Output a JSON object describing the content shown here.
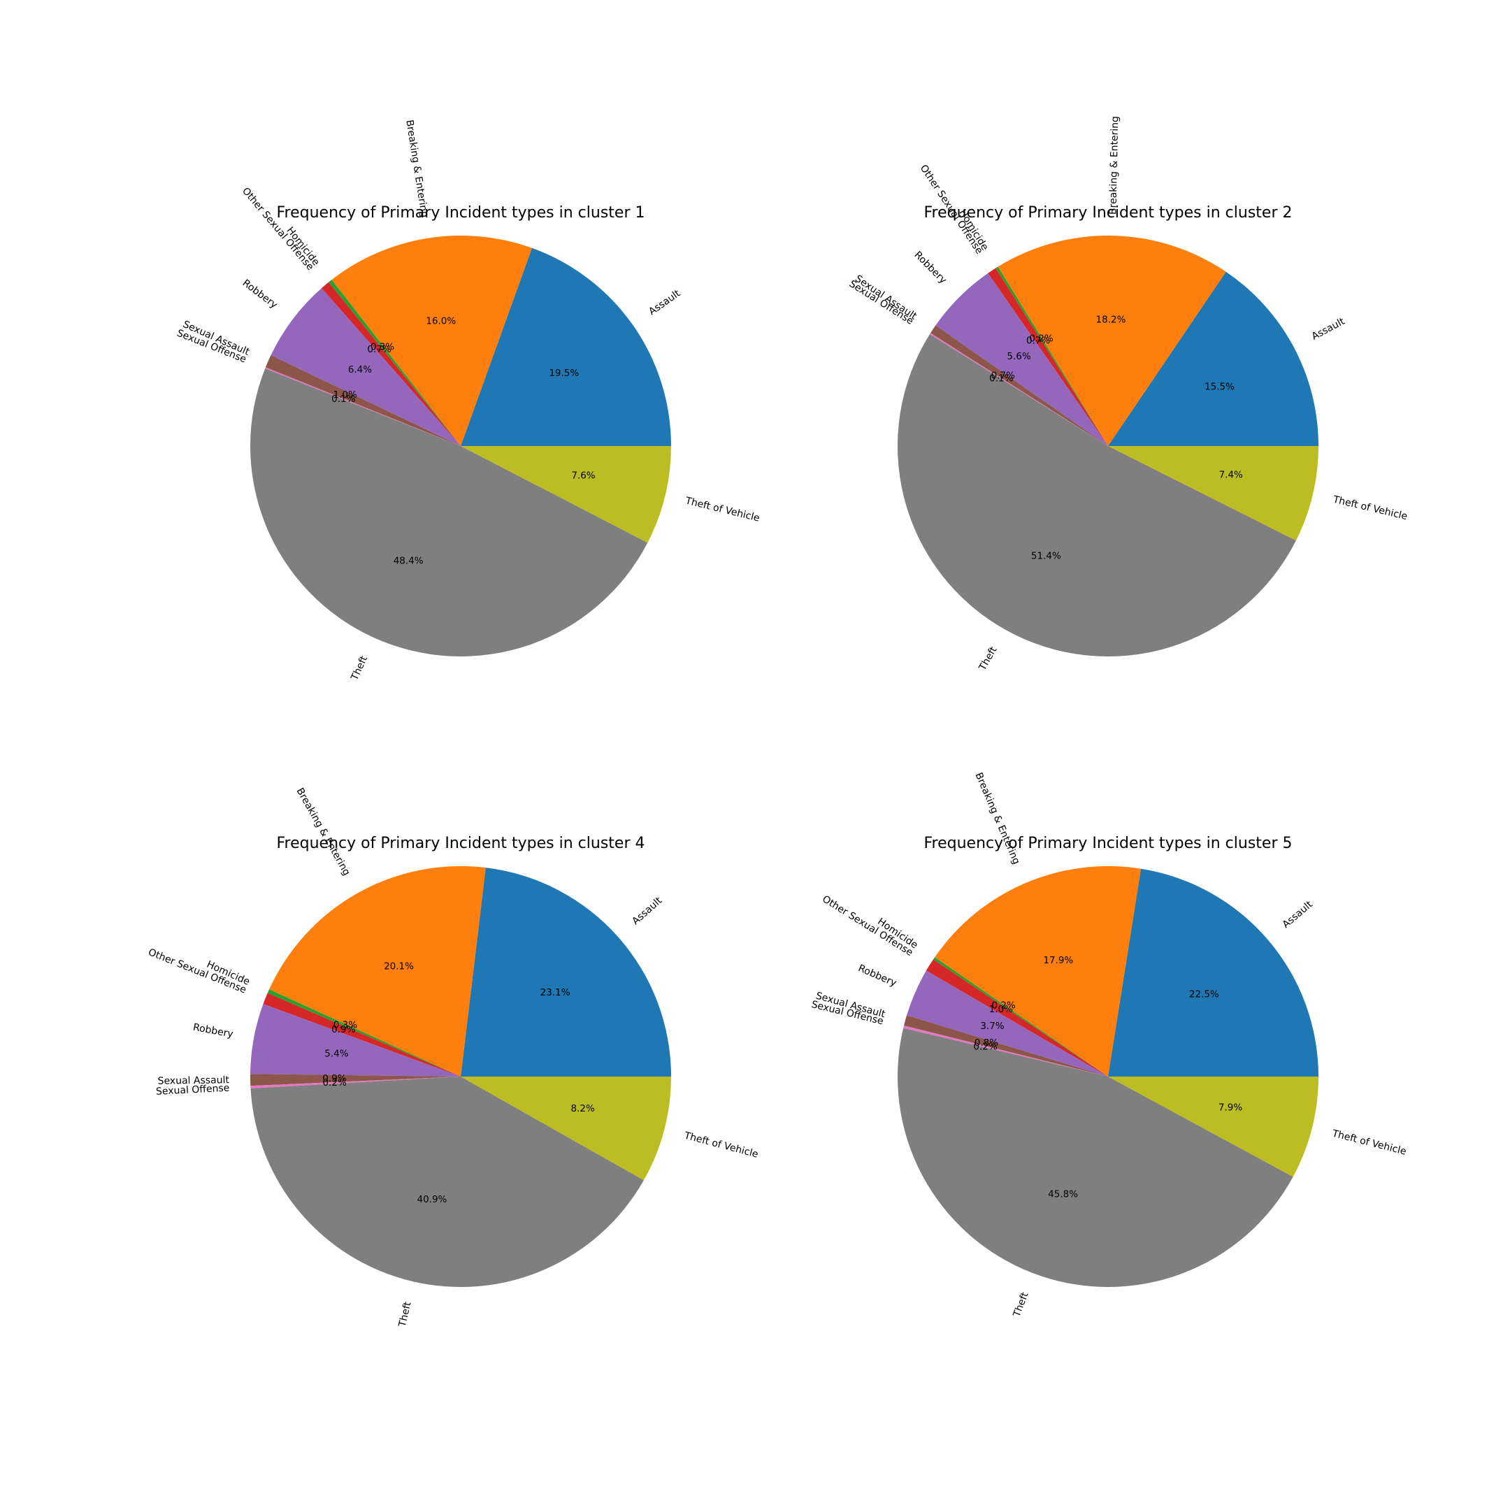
{
  "figure": {
    "colors": {
      "Assault": "#1f77b4",
      "Breaking & Entering": "#ff7f0e",
      "Homicide": "#2ca02c",
      "Other Sexual Offense": "#d62728",
      "Robbery": "#9467bd",
      "Sexual Assault": "#8c564b",
      "Sexual Offense": "#e377c2",
      "Theft": "#7f7f7f",
      "Theft of Vehicle": "#bcbd22"
    }
  },
  "chart_data": [
    {
      "type": "pie",
      "title": "Frequency of Primary Incident types in cluster 1",
      "labels": [
        "Assault",
        "Breaking & Entering",
        "Homicide",
        "Other Sexual Offense",
        "Robbery",
        "Sexual Assault",
        "Sexual Offense",
        "Theft",
        "Theft of Vehicle"
      ],
      "values": [
        19.5,
        16.0,
        0.3,
        0.7,
        6.4,
        1.0,
        0.1,
        48.4,
        7.6
      ],
      "pct_labels": [
        "19.5%",
        "16.0%",
        "0.3%",
        "0.7%",
        "6.4%",
        "1.0%",
        "0.1%",
        "48.4%",
        "7.6%"
      ]
    },
    {
      "type": "pie",
      "title": "Frequency of Primary Incident types in cluster 2",
      "labels": [
        "Assault",
        "Breaking & Entering",
        "Homicide",
        "Other Sexual Offense",
        "Robbery",
        "Sexual Assault",
        "Sexual Offense",
        "Theft",
        "Theft of Vehicle"
      ],
      "values": [
        15.5,
        18.2,
        0.2,
        0.7,
        5.6,
        0.7,
        0.1,
        51.4,
        7.4
      ],
      "pct_labels": [
        "15.5%",
        "18.2%",
        "0.2%",
        "0.7%",
        "5.6%",
        "0.7%",
        "0.1%",
        "51.4%",
        "7.4%"
      ]
    },
    {
      "type": "pie",
      "title": "Frequency of Primary Incident types in cluster 4",
      "labels": [
        "Assault",
        "Breaking & Entering",
        "Homicide",
        "Other Sexual Offense",
        "Robbery",
        "Sexual Assault",
        "Sexual Offense",
        "Theft",
        "Theft of Vehicle"
      ],
      "values": [
        23.1,
        20.1,
        0.3,
        0.9,
        5.4,
        0.9,
        0.2,
        40.9,
        8.2
      ],
      "pct_labels": [
        "23.1%",
        "20.1%",
        "0.3%",
        "0.9%",
        "5.4%",
        "0.9%",
        "0.2%",
        "40.9%",
        "8.2%"
      ]
    },
    {
      "type": "pie",
      "title": "Frequency of Primary Incident types in cluster 5",
      "labels": [
        "Assault",
        "Breaking & Entering",
        "Homicide",
        "Other Sexual Offense",
        "Robbery",
        "Sexual Assault",
        "Sexual Offense",
        "Theft",
        "Theft of Vehicle"
      ],
      "values": [
        22.5,
        17.9,
        0.2,
        1.0,
        3.7,
        0.8,
        0.2,
        45.8,
        7.9
      ],
      "pct_labels": [
        "22.5%",
        "17.9%",
        "0.2%",
        "1.0%",
        "3.7%",
        "0.8%",
        "0.2%",
        "45.8%",
        "7.9%"
      ]
    }
  ]
}
